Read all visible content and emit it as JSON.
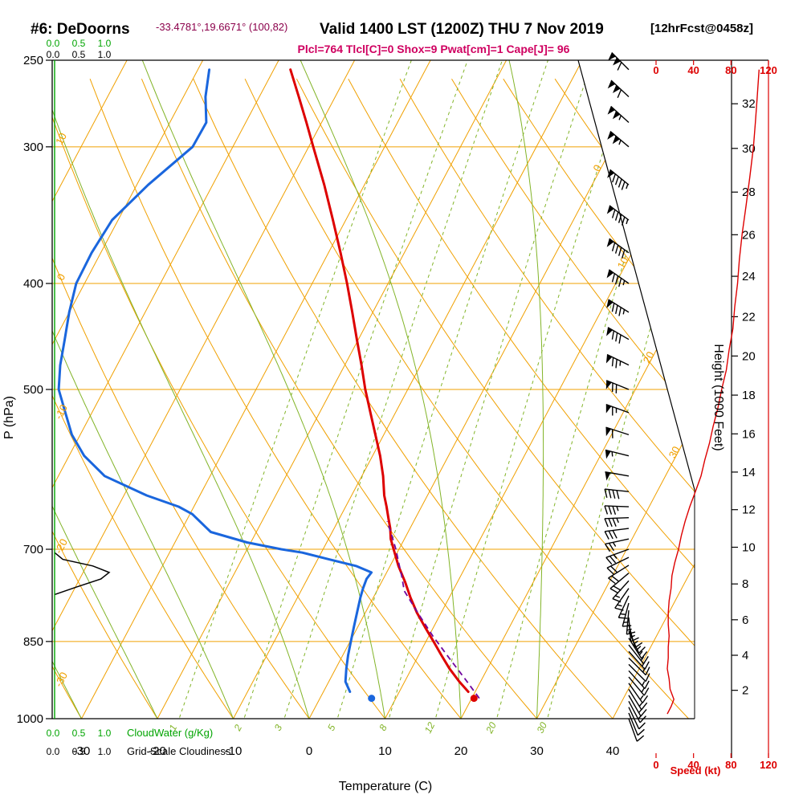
{
  "header": {
    "station": "#6: DeDoorns",
    "coords": "-33.4781°,19.6671° (100,82)",
    "valid": "Valid 1400 LST (1200Z) THU 7 Nov 2019",
    "fcst": "[12hrFcst@0458z]",
    "indices": "Plcl=764 Tlcl[C]=0 Shox=9 Pwat[cm]=1 Cape[J]= 96",
    "indices_values": {
      "Plcl": 764,
      "Tlcl_C": 0,
      "Shox": 9,
      "Pwat_cm": 1,
      "Cape_J": 96
    }
  },
  "axes": {
    "pressure_label": "P (hPa)",
    "pressure_ticks": [
      250,
      300,
      400,
      500,
      700,
      850,
      1000
    ],
    "pressure_gridlines": [
      300,
      400,
      500,
      700,
      850,
      1000
    ],
    "temp_label": "Temperature (C)",
    "temp_ticks": [
      -30,
      -20,
      -10,
      0,
      10,
      20,
      30,
      40
    ],
    "height_label": "Height (1000 Feet)",
    "height_ticks": [
      {
        "kft": 2,
        "p": 942
      },
      {
        "kft": 4,
        "p": 875
      },
      {
        "kft": 6,
        "p": 812
      },
      {
        "kft": 8,
        "p": 753
      },
      {
        "kft": 10,
        "p": 697
      },
      {
        "kft": 12,
        "p": 644
      },
      {
        "kft": 14,
        "p": 595
      },
      {
        "kft": 16,
        "p": 549
      },
      {
        "kft": 18,
        "p": 506
      },
      {
        "kft": 20,
        "p": 466
      },
      {
        "kft": 22,
        "p": 429
      },
      {
        "kft": 24,
        "p": 394
      },
      {
        "kft": 26,
        "p": 361
      },
      {
        "kft": 28,
        "p": 330
      },
      {
        "kft": 30,
        "p": 301
      },
      {
        "kft": 32,
        "p": 274
      }
    ],
    "speed_label": "Speed (kt)",
    "speed_ticks": [
      0,
      40,
      80,
      120
    ],
    "cloudwater_label": "CloudWater (g/Kg)",
    "cloudiness_label": "Grid-Scale Cloudiness",
    "cloud_scale": [
      "0.0",
      "0.5",
      "1.0"
    ]
  },
  "grid_labels": {
    "dry_adiabats": [
      10,
      0,
      -10,
      -20,
      -30
    ],
    "isotherms_diagonal": [
      0,
      10,
      20,
      30
    ],
    "mixing_ratios": [
      1,
      2,
      3,
      5,
      8,
      12,
      20,
      30
    ]
  },
  "chart_data": {
    "type": "skewt-logp-sounding",
    "pressure_range_hPa": [
      250,
      1000
    ],
    "temp_axis_range_C": [
      -40,
      45
    ],
    "grid": {
      "isotherms_C": {
        "min": -110,
        "max": 40,
        "step": 10
      },
      "dry_adiabats_C": {
        "min": -40,
        "max": 120,
        "step": 10
      },
      "moist_adiabats_C": [
        -40,
        -30,
        -20,
        -10,
        0,
        10,
        20,
        30
      ],
      "mixing_ratio_g_kg": [
        1,
        2,
        3,
        5,
        8,
        12,
        20,
        30
      ]
    },
    "temperature_profile_pT": [
      [
        945,
        19.1
      ],
      [
        925,
        17.2
      ],
      [
        900,
        15.0
      ],
      [
        875,
        13.0
      ],
      [
        850,
        11.0
      ],
      [
        825,
        8.9
      ],
      [
        800,
        6.8
      ],
      [
        775,
        4.9
      ],
      [
        750,
        3.1
      ],
      [
        725,
        1.1
      ],
      [
        700,
        -0.7
      ],
      [
        685,
        -1.8
      ],
      [
        670,
        -2.6
      ],
      [
        655,
        -3.6
      ],
      [
        640,
        -4.6
      ],
      [
        625,
        -5.7
      ],
      [
        600,
        -7.2
      ],
      [
        575,
        -9.0
      ],
      [
        550,
        -11.1
      ],
      [
        525,
        -13.3
      ],
      [
        500,
        -15.6
      ],
      [
        475,
        -17.8
      ],
      [
        450,
        -20.2
      ],
      [
        425,
        -22.7
      ],
      [
        400,
        -25.4
      ],
      [
        375,
        -28.4
      ],
      [
        350,
        -31.7
      ],
      [
        325,
        -35.3
      ],
      [
        300,
        -39.4
      ],
      [
        285,
        -42.0
      ],
      [
        270,
        -44.8
      ],
      [
        255,
        -47.8
      ]
    ],
    "dewpoint_profile_pT": [
      [
        945,
        3.5
      ],
      [
        925,
        2.2
      ],
      [
        900,
        1.4
      ],
      [
        875,
        0.7
      ],
      [
        850,
        0.1
      ],
      [
        825,
        -0.5
      ],
      [
        800,
        -1.1
      ],
      [
        775,
        -1.7
      ],
      [
        760,
        -2.0
      ],
      [
        745,
        -2.2
      ],
      [
        735,
        -2.0
      ],
      [
        725,
        -4.5
      ],
      [
        715,
        -8.5
      ],
      [
        705,
        -12.5
      ],
      [
        700,
        -15.5
      ],
      [
        690,
        -20.5
      ],
      [
        675,
        -26.0
      ],
      [
        650,
        -29.7
      ],
      [
        640,
        -32.0
      ],
      [
        625,
        -37.0
      ],
      [
        600,
        -43.9
      ],
      [
        575,
        -48.0
      ],
      [
        550,
        -51.1
      ],
      [
        525,
        -53.5
      ],
      [
        500,
        -56.0
      ],
      [
        475,
        -57.5
      ],
      [
        450,
        -58.7
      ],
      [
        425,
        -60.0
      ],
      [
        400,
        -61.1
      ],
      [
        375,
        -61.2
      ],
      [
        350,
        -60.8
      ],
      [
        325,
        -58.5
      ],
      [
        300,
        -55.3
      ],
      [
        285,
        -55.2
      ],
      [
        270,
        -57.1
      ],
      [
        255,
        -58.5
      ]
    ],
    "parcel_trace_pT": [
      [
        958,
        21.0
      ],
      [
        920,
        17.8
      ],
      [
        880,
        14.2
      ],
      [
        840,
        10.5
      ],
      [
        800,
        6.9
      ],
      [
        764,
        3.6
      ],
      [
        740,
        2.2
      ],
      [
        720,
        0.9
      ],
      [
        700,
        -0.4
      ],
      [
        680,
        -1.9
      ],
      [
        660,
        -3.5
      ]
    ],
    "surface_temperature_point": {
      "p": 958,
      "t": 20.3
    },
    "surface_dewpoint_point": {
      "p": 958,
      "t": 6.8
    },
    "wind_barbs_p_dir_kt": [
      [
        1000,
        160,
        10
      ],
      [
        988,
        158,
        12
      ],
      [
        976,
        155,
        12
      ],
      [
        964,
        152,
        13
      ],
      [
        952,
        150,
        15
      ],
      [
        940,
        148,
        14
      ],
      [
        928,
        145,
        15
      ],
      [
        916,
        140,
        14
      ],
      [
        904,
        138,
        13
      ],
      [
        892,
        135,
        12
      ],
      [
        880,
        135,
        13
      ],
      [
        868,
        138,
        13
      ],
      [
        856,
        142,
        14
      ],
      [
        844,
        148,
        14
      ],
      [
        832,
        155,
        13
      ],
      [
        820,
        165,
        13
      ],
      [
        808,
        175,
        13
      ],
      [
        796,
        185,
        14
      ],
      [
        784,
        195,
        15
      ],
      [
        772,
        205,
        15
      ],
      [
        760,
        215,
        16
      ],
      [
        748,
        222,
        17
      ],
      [
        736,
        230,
        18
      ],
      [
        724,
        238,
        19
      ],
      [
        712,
        244,
        20
      ],
      [
        700,
        250,
        24
      ],
      [
        685,
        258,
        27
      ],
      [
        670,
        263,
        30
      ],
      [
        655,
        268,
        33
      ],
      [
        640,
        272,
        36
      ],
      [
        620,
        276,
        42
      ],
      [
        600,
        280,
        48
      ],
      [
        575,
        284,
        54
      ],
      [
        550,
        288,
        58
      ],
      [
        525,
        290,
        64
      ],
      [
        500,
        292,
        70
      ],
      [
        475,
        296,
        76
      ],
      [
        450,
        300,
        81
      ],
      [
        425,
        302,
        84
      ],
      [
        400,
        305,
        87
      ],
      [
        375,
        306,
        90
      ],
      [
        350,
        307,
        93
      ],
      [
        325,
        309,
        97
      ],
      [
        300,
        310,
        104
      ],
      [
        285,
        312,
        107
      ],
      [
        270,
        313,
        110
      ],
      [
        255,
        315,
        112
      ]
    ],
    "wind_speed_profile_p_kt": [
      [
        255,
        110
      ],
      [
        270,
        108
      ],
      [
        285,
        106
      ],
      [
        300,
        104
      ],
      [
        320,
        100
      ],
      [
        340,
        96
      ],
      [
        360,
        92
      ],
      [
        380,
        89
      ],
      [
        400,
        87
      ],
      [
        420,
        84
      ],
      [
        440,
        82
      ],
      [
        460,
        78
      ],
      [
        480,
        75
      ],
      [
        500,
        70
      ],
      [
        520,
        66
      ],
      [
        540,
        61
      ],
      [
        560,
        57
      ],
      [
        580,
        52
      ],
      [
        600,
        48
      ],
      [
        620,
        42
      ],
      [
        640,
        36
      ],
      [
        660,
        31
      ],
      [
        680,
        27
      ],
      [
        700,
        24
      ],
      [
        720,
        20
      ],
      [
        740,
        17
      ],
      [
        760,
        16
      ],
      [
        780,
        14
      ],
      [
        800,
        13
      ],
      [
        820,
        13
      ],
      [
        840,
        14
      ],
      [
        860,
        13
      ],
      [
        880,
        13
      ],
      [
        900,
        12
      ],
      [
        920,
        14
      ],
      [
        940,
        15
      ],
      [
        960,
        19
      ],
      [
        975,
        16
      ],
      [
        990,
        12
      ]
    ],
    "cloud_fraction_profile_p_frac": [
      [
        705,
        0
      ],
      [
        715,
        0.15
      ],
      [
        725,
        0.7
      ],
      [
        735,
        1.0
      ],
      [
        745,
        0.85
      ],
      [
        758,
        0.4
      ],
      [
        770,
        0
      ]
    ],
    "cloud_water_profile_p_gkg": [
      [
        250,
        0
      ],
      [
        1000,
        0
      ]
    ]
  },
  "colors": {
    "orange": "#f0a000",
    "green_grid": "#82b428",
    "green_scale": "#00a400",
    "red": "#dd0000",
    "blue": "#1a66dd",
    "violet": "#70069e",
    "magenta": "#cf0060",
    "maroon": "#8b004b",
    "black": "#000000"
  }
}
